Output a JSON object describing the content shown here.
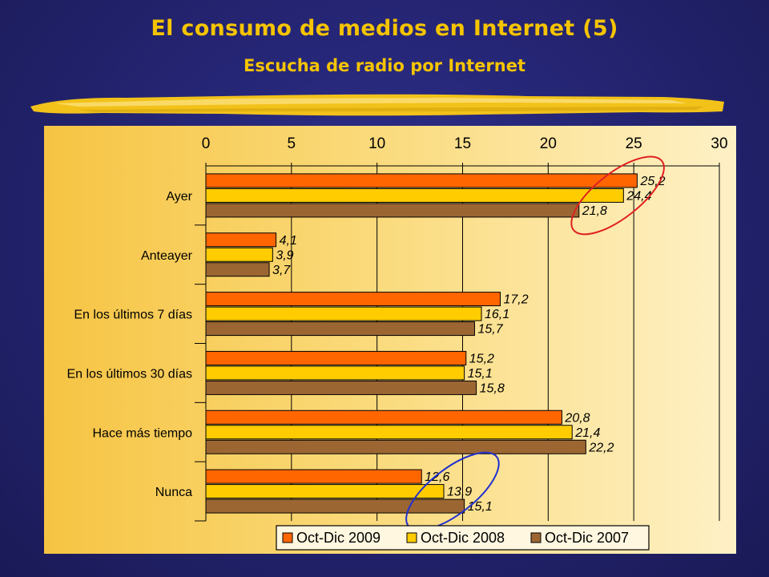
{
  "header": {
    "title": "El consumo de medios en Internet (5)",
    "subtitle": "Escucha de radio por Internet"
  },
  "colors": {
    "title": "#f5c400",
    "background": "#23236f",
    "series_2009": "#ff6600",
    "series_2008": "#ffcc00",
    "series_2007": "#9c6633",
    "ellipse_top": "#e02020",
    "ellipse_bottom": "#2030d0"
  },
  "chart_data": {
    "type": "bar",
    "orientation": "horizontal",
    "categories": [
      "Ayer",
      "Anteayer",
      "En los últimos 7 días",
      "En los últimos 30 días",
      "Hace más tiempo",
      "Nunca"
    ],
    "series": [
      {
        "name": "Oct-Dic 2009",
        "values": [
          25.2,
          4.1,
          17.2,
          15.2,
          20.8,
          12.6
        ],
        "labels": [
          "25,2",
          "4,1",
          "17,2",
          "15,2",
          "20,8",
          "12,6"
        ]
      },
      {
        "name": "Oct-Dic 2008",
        "values": [
          24.4,
          3.9,
          16.1,
          15.1,
          21.4,
          13.9
        ],
        "labels": [
          "24,4",
          "3,9",
          "16,1",
          "15,1",
          "21,4",
          "13,9"
        ]
      },
      {
        "name": "Oct-Dic 2007",
        "values": [
          21.8,
          3.7,
          15.7,
          15.8,
          22.2,
          15.1
        ],
        "labels": [
          "21,8",
          "3,7",
          "15,7",
          "15,8",
          "22,2",
          "15,1"
        ]
      }
    ],
    "xlim": [
      0,
      30
    ],
    "x_ticks": [
      "0",
      "5",
      "10",
      "15",
      "20",
      "25",
      "30"
    ],
    "x_axis_position": "top",
    "grid": "vertical",
    "legend_position": "bottom",
    "annotations": [
      {
        "shape": "ellipse",
        "color": "red",
        "highlights": "Ayer"
      },
      {
        "shape": "ellipse",
        "color": "blue",
        "highlights": "Nunca"
      }
    ]
  }
}
